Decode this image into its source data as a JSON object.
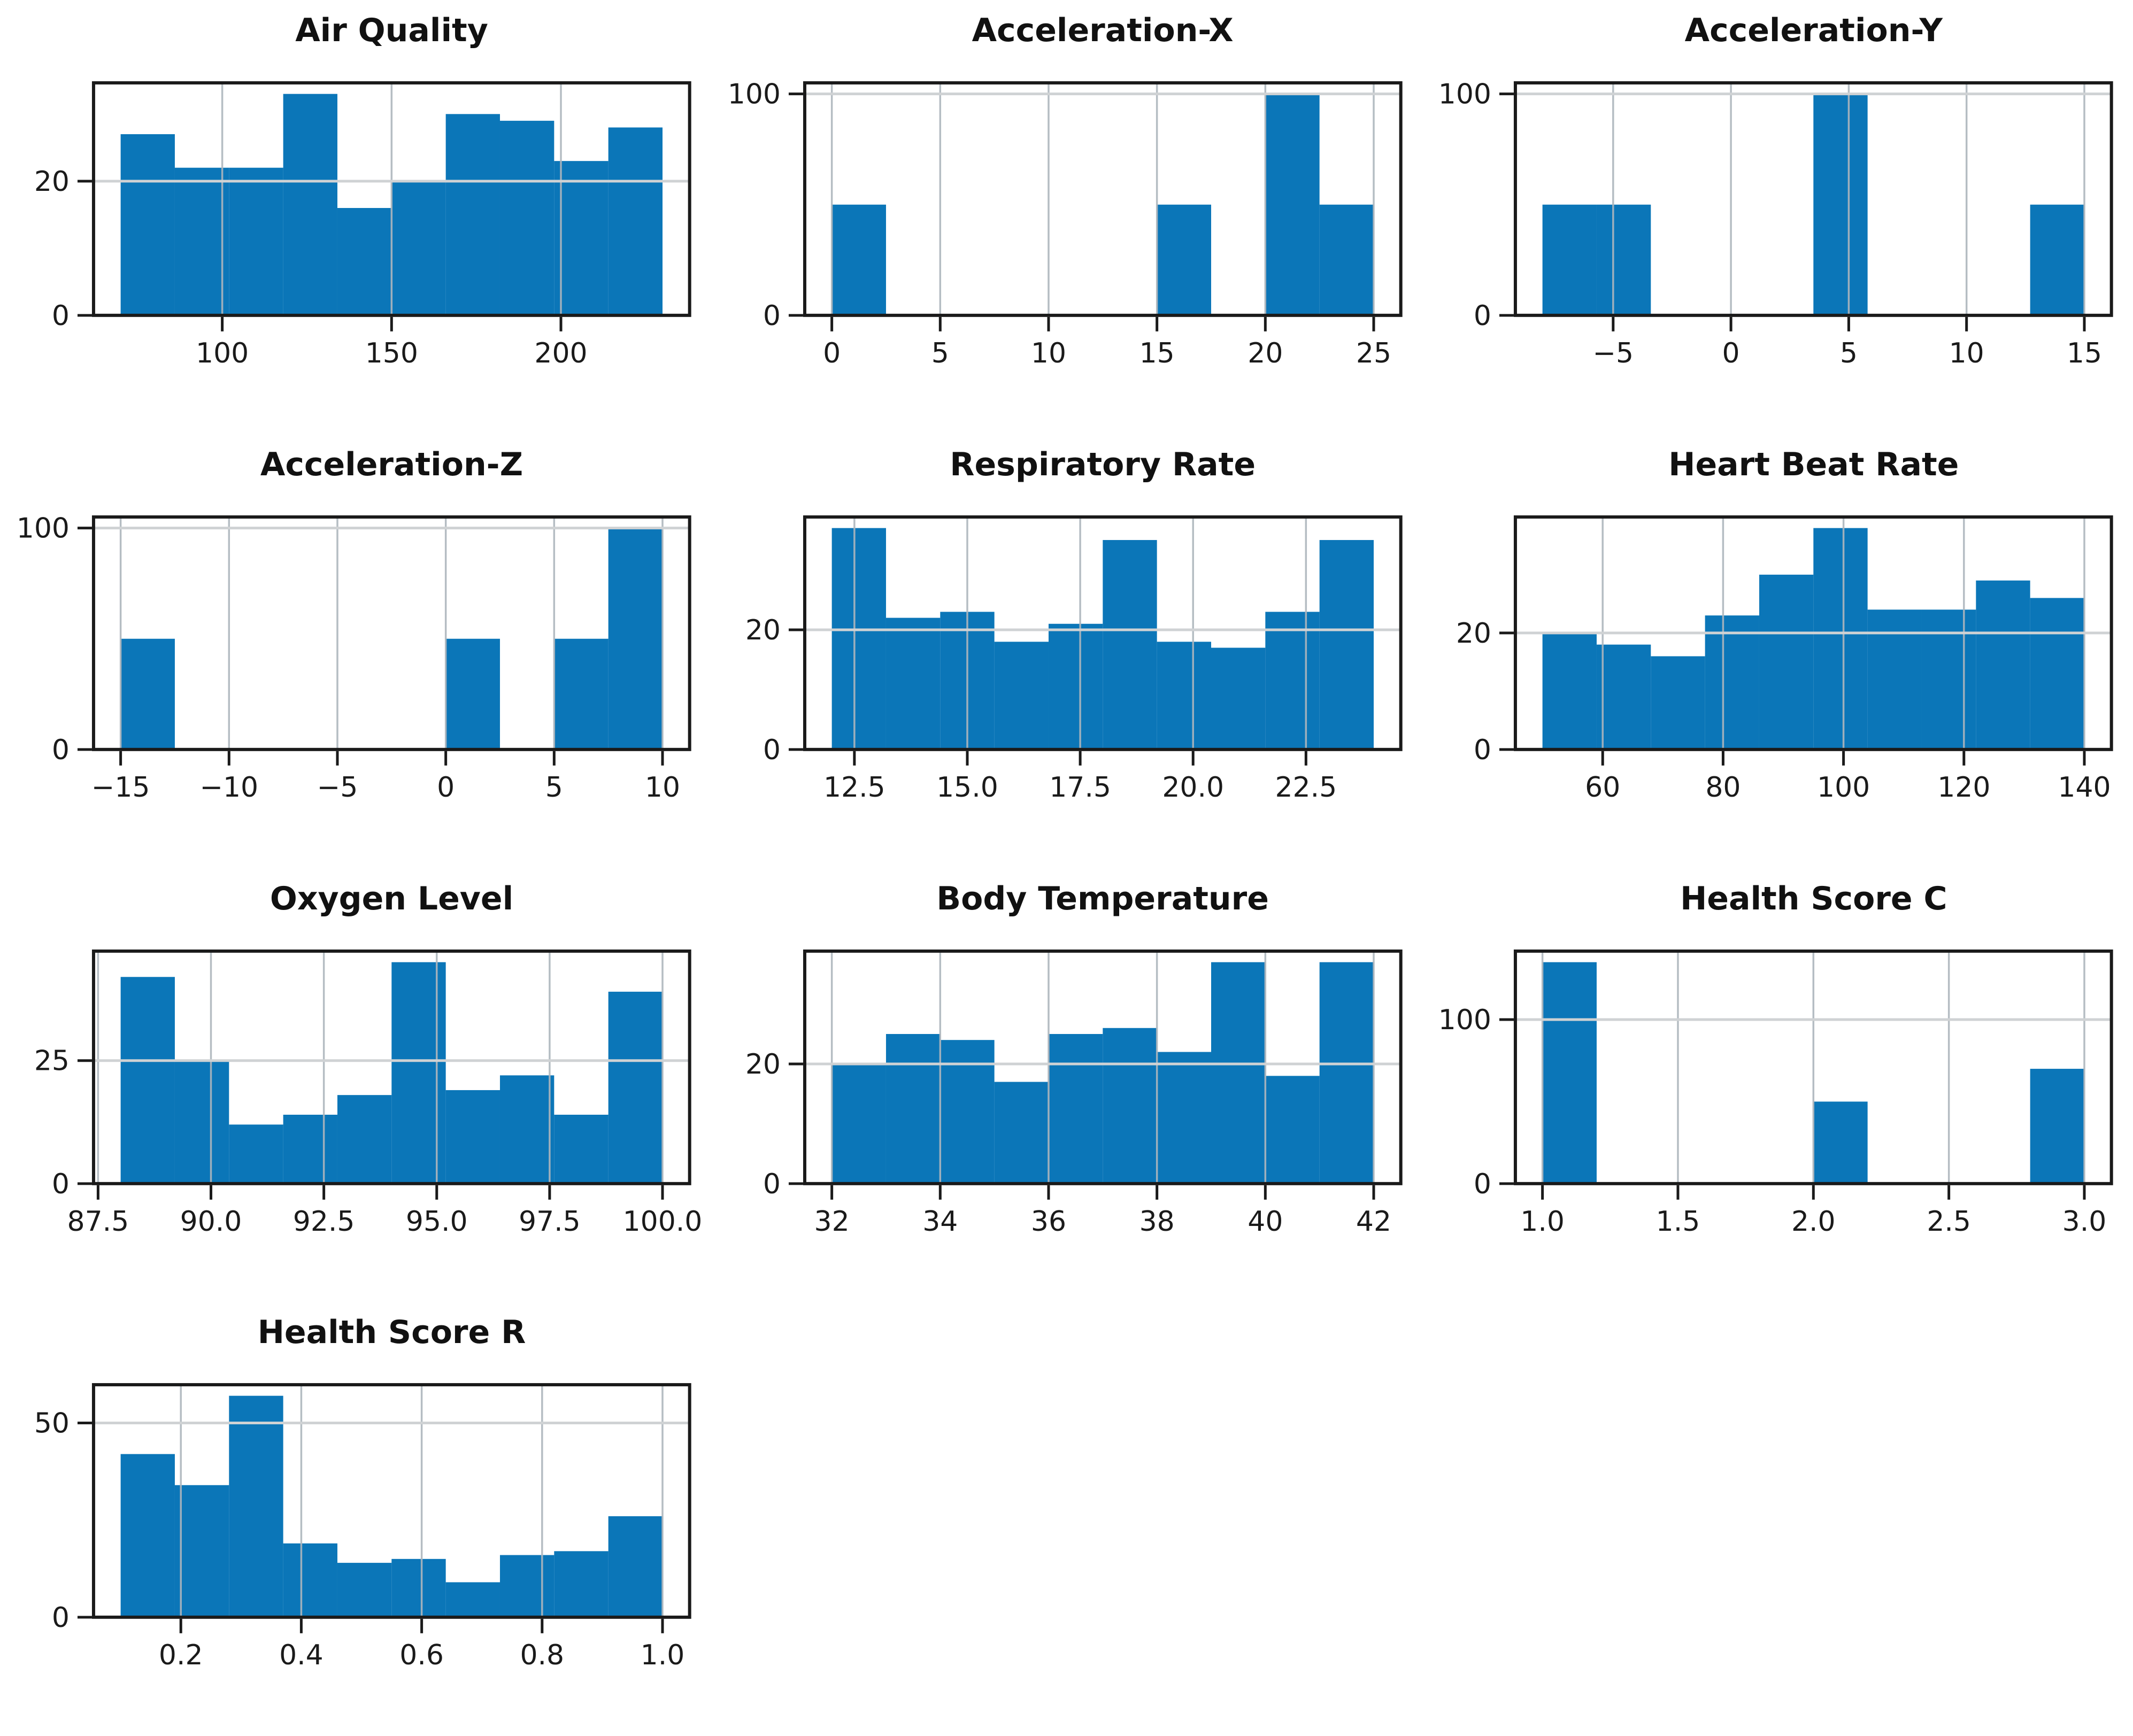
{
  "figure": {
    "kind": "histogram-grid",
    "rows": 4,
    "cols": 3,
    "background": "#ffffff"
  },
  "style": {
    "bar_color": "#0b76b8",
    "grid_color_vertical": "#aeb6bd",
    "grid_color_horizontal": "#cfd2d4",
    "spine_color": "#1a1a1a",
    "tick_color": "#1a1a1a",
    "label_color": "#1a1a1a",
    "title_color": "#111111"
  },
  "chart_data": [
    {
      "type": "bar",
      "title": "Air Quality",
      "bin_start": 70,
      "bin_width": 16,
      "values": [
        27,
        22,
        22,
        33,
        16,
        20,
        30,
        29,
        23,
        28
      ],
      "x_ticks": [
        {
          "label": "100",
          "value": 100
        },
        {
          "label": "150",
          "value": 150
        },
        {
          "label": "200",
          "value": 200
        }
      ],
      "y_ticks": [
        {
          "label": "0",
          "value": 0
        },
        {
          "label": "20",
          "value": 20
        }
      ],
      "xlim": [
        62,
        238
      ],
      "ylim": [
        0,
        34.65
      ],
      "grid": true,
      "legend": "none"
    },
    {
      "type": "bar",
      "title": "Acceleration-X",
      "bin_start": 0,
      "bin_width": 2.5,
      "values": [
        50,
        0,
        0,
        0,
        0,
        0,
        50,
        0,
        100,
        50
      ],
      "x_ticks": [
        {
          "label": "0",
          "value": 0
        },
        {
          "label": "5",
          "value": 5
        },
        {
          "label": "10",
          "value": 10
        },
        {
          "label": "15",
          "value": 15
        },
        {
          "label": "20",
          "value": 20
        },
        {
          "label": "25",
          "value": 25
        }
      ],
      "y_ticks": [
        {
          "label": "0",
          "value": 0
        },
        {
          "label": "100",
          "value": 100
        }
      ],
      "xlim": [
        -1.25,
        26.25
      ],
      "ylim": [
        0,
        105
      ],
      "grid": true,
      "legend": "none"
    },
    {
      "type": "bar",
      "title": "Acceleration-Y",
      "bin_start": -8,
      "bin_width": 2.3,
      "values": [
        50,
        50,
        0,
        0,
        0,
        100,
        0,
        0,
        0,
        50
      ],
      "x_ticks": [
        {
          "label": "−5",
          "value": -5
        },
        {
          "label": "0",
          "value": 0
        },
        {
          "label": "5",
          "value": 5
        },
        {
          "label": "10",
          "value": 10
        },
        {
          "label": "15",
          "value": 15
        }
      ],
      "y_ticks": [
        {
          "label": "0",
          "value": 0
        },
        {
          "label": "100",
          "value": 100
        }
      ],
      "xlim": [
        -9.15,
        16.15
      ],
      "ylim": [
        0,
        105
      ],
      "grid": true,
      "legend": "none"
    },
    {
      "type": "bar",
      "title": "Acceleration-Z",
      "bin_start": -15,
      "bin_width": 2.5,
      "values": [
        50,
        0,
        0,
        0,
        0,
        0,
        50,
        0,
        50,
        100
      ],
      "x_ticks": [
        {
          "label": "−15",
          "value": -15
        },
        {
          "label": "−10",
          "value": -10
        },
        {
          "label": "−5",
          "value": -5
        },
        {
          "label": "0",
          "value": 0
        },
        {
          "label": "5",
          "value": 5
        },
        {
          "label": "10",
          "value": 10
        }
      ],
      "y_ticks": [
        {
          "label": "0",
          "value": 0
        },
        {
          "label": "100",
          "value": 100
        }
      ],
      "xlim": [
        -16.25,
        11.25
      ],
      "ylim": [
        0,
        105
      ],
      "grid": true,
      "legend": "none"
    },
    {
      "type": "bar",
      "title": "Respiratory Rate",
      "bin_start": 12,
      "bin_width": 1.2,
      "values": [
        37,
        22,
        23,
        18,
        21,
        35,
        18,
        17,
        23,
        35
      ],
      "x_ticks": [
        {
          "label": "12.5",
          "value": 12.5
        },
        {
          "label": "15.0",
          "value": 15.0
        },
        {
          "label": "17.5",
          "value": 17.5
        },
        {
          "label": "20.0",
          "value": 20.0
        },
        {
          "label": "22.5",
          "value": 22.5
        }
      ],
      "y_ticks": [
        {
          "label": "0",
          "value": 0
        },
        {
          "label": "20",
          "value": 20
        }
      ],
      "xlim": [
        11.4,
        24.6
      ],
      "ylim": [
        0,
        38.85
      ],
      "grid": true,
      "legend": "none"
    },
    {
      "type": "bar",
      "title": "Heart Beat Rate",
      "bin_start": 50,
      "bin_width": 9,
      "values": [
        20,
        18,
        16,
        23,
        30,
        38,
        24,
        24,
        29,
        26
      ],
      "x_ticks": [
        {
          "label": "60",
          "value": 60
        },
        {
          "label": "80",
          "value": 80
        },
        {
          "label": "100",
          "value": 100
        },
        {
          "label": "120",
          "value": 120
        },
        {
          "label": "140",
          "value": 140
        }
      ],
      "y_ticks": [
        {
          "label": "0",
          "value": 0
        },
        {
          "label": "20",
          "value": 20
        }
      ],
      "xlim": [
        45.5,
        144.5
      ],
      "ylim": [
        0,
        39.9
      ],
      "grid": true,
      "legend": "none"
    },
    {
      "type": "bar",
      "title": "Oxygen Level",
      "bin_start": 88,
      "bin_width": 1.2,
      "values": [
        42,
        25,
        12,
        14,
        18,
        45,
        19,
        22,
        14,
        39
      ],
      "x_ticks": [
        {
          "label": "87.5",
          "value": 87.5
        },
        {
          "label": "90.0",
          "value": 90.0
        },
        {
          "label": "92.5",
          "value": 92.5
        },
        {
          "label": "95.0",
          "value": 95.0
        },
        {
          "label": "97.5",
          "value": 97.5
        },
        {
          "label": "100.0",
          "value": 100.0
        }
      ],
      "y_ticks": [
        {
          "label": "0",
          "value": 0
        },
        {
          "label": "25",
          "value": 25
        }
      ],
      "xlim": [
        87.4,
        100.6
      ],
      "ylim": [
        0,
        47.25
      ],
      "grid": true,
      "legend": "none"
    },
    {
      "type": "bar",
      "title": "Body Temperature",
      "bin_start": 32,
      "bin_width": 1,
      "values": [
        20,
        25,
        24,
        17,
        25,
        26,
        22,
        37,
        18,
        37
      ],
      "x_ticks": [
        {
          "label": "32",
          "value": 32
        },
        {
          "label": "34",
          "value": 34
        },
        {
          "label": "36",
          "value": 36
        },
        {
          "label": "38",
          "value": 38
        },
        {
          "label": "40",
          "value": 40
        },
        {
          "label": "42",
          "value": 42
        }
      ],
      "y_ticks": [
        {
          "label": "0",
          "value": 0
        },
        {
          "label": "20",
          "value": 20
        }
      ],
      "xlim": [
        31.5,
        42.5
      ],
      "ylim": [
        0,
        38.85
      ],
      "grid": true,
      "legend": "none"
    },
    {
      "type": "bar",
      "title": "Health Score C",
      "bin_start": 1.0,
      "bin_width": 0.2,
      "values": [
        135,
        0,
        0,
        0,
        0,
        50,
        0,
        0,
        0,
        70
      ],
      "x_ticks": [
        {
          "label": "1.0",
          "value": 1.0
        },
        {
          "label": "1.5",
          "value": 1.5
        },
        {
          "label": "2.0",
          "value": 2.0
        },
        {
          "label": "2.5",
          "value": 2.5
        },
        {
          "label": "3.0",
          "value": 3.0
        }
      ],
      "y_ticks": [
        {
          "label": "0",
          "value": 0
        },
        {
          "label": "100",
          "value": 100
        }
      ],
      "xlim": [
        0.9,
        3.1
      ],
      "ylim": [
        0,
        141.75
      ],
      "grid": true,
      "legend": "none"
    },
    {
      "type": "bar",
      "title": "Health Score R",
      "bin_start": 0.1,
      "bin_width": 0.09,
      "values": [
        42,
        34,
        57,
        19,
        14,
        15,
        9,
        16,
        17,
        26
      ],
      "x_ticks": [
        {
          "label": "0.2",
          "value": 0.2
        },
        {
          "label": "0.4",
          "value": 0.4
        },
        {
          "label": "0.6",
          "value": 0.6
        },
        {
          "label": "0.8",
          "value": 0.8
        },
        {
          "label": "1.0",
          "value": 1.0
        }
      ],
      "y_ticks": [
        {
          "label": "0",
          "value": 0
        },
        {
          "label": "50",
          "value": 50
        }
      ],
      "xlim": [
        0.055,
        1.045
      ],
      "ylim": [
        0,
        59.85
      ],
      "grid": true,
      "legend": "none"
    }
  ]
}
